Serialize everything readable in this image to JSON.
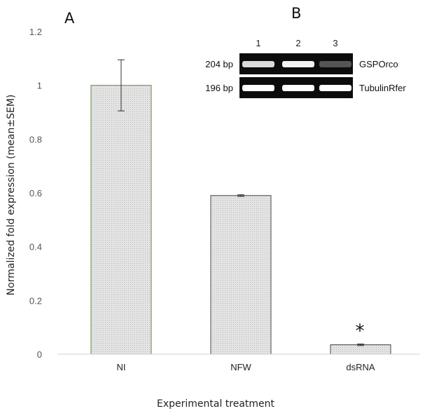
{
  "panel_labels": {
    "a": "A",
    "b": "B"
  },
  "chart_data": {
    "type": "bar",
    "categories": [
      "NI",
      "NFW",
      "dsRNA"
    ],
    "values": [
      1.0,
      0.59,
      0.035
    ],
    "errors": [
      0.095,
      0.003,
      0.003
    ],
    "ylabel": "Normalized fold expression (mean±SEM)",
    "xlabel": "Experimental treatment",
    "ylim": [
      0,
      1.2
    ],
    "yticks": [
      "0",
      "0.2",
      "0.4",
      "0.6",
      "0.8",
      "1",
      "1.2"
    ],
    "grid": false,
    "bar_fill": "#dcdcdc",
    "bar_edge_colors": [
      "#5a8a3a",
      "#444444",
      "#444444"
    ],
    "significance": {
      "category": "dsRNA",
      "mark": "*"
    }
  },
  "gel": {
    "lanes": [
      "1",
      "2",
      "3"
    ],
    "rows": [
      {
        "size": "204 bp",
        "gene": "GSPOrco",
        "intensity": [
          0.85,
          0.95,
          0.3
        ]
      },
      {
        "size": "196 bp",
        "gene": "TubulinRfer",
        "intensity": [
          1.0,
          1.0,
          1.0
        ]
      }
    ]
  }
}
